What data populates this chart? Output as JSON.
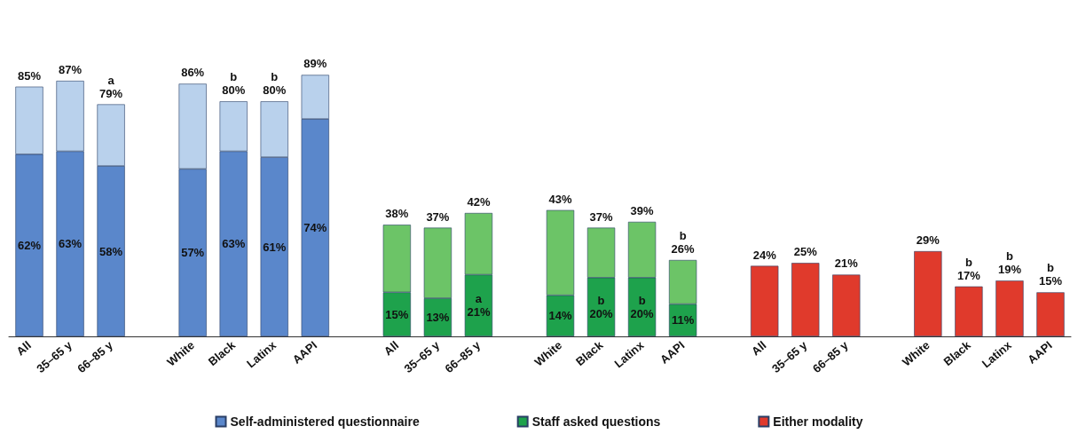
{
  "chart_data": {
    "type": "bar",
    "stacked": true,
    "legend": "bottom",
    "categories": [
      "All",
      "35–65 y",
      "66–85 y",
      null,
      "White",
      "Black",
      "Latinx",
      "AAPI",
      null,
      "All",
      "35–65 y",
      "66–85 y",
      null,
      "White",
      "Black",
      "Latinx",
      "AAPI",
      null,
      "All",
      "35–65 y",
      "66–85 y",
      null,
      "White",
      "Black",
      "Latinx",
      "AAPI"
    ],
    "series": [
      {
        "name": "Self-administered questionnaire",
        "color": "#5a87cb",
        "values": [
          62,
          63,
          58,
          null,
          57,
          63,
          61,
          74,
          null,
          null,
          null,
          null,
          null,
          null,
          null,
          null,
          null,
          null,
          null,
          null,
          null,
          null,
          null,
          null,
          null,
          null
        ],
        "value_labels": [
          "62%",
          "63%",
          "58%",
          null,
          "57%",
          "63%",
          "61%",
          "74%",
          null,
          null,
          null,
          null,
          null,
          null,
          null,
          null,
          null,
          null,
          null,
          null,
          null,
          null,
          null,
          null,
          null,
          null
        ]
      },
      {
        "color": "#b9d1ec",
        "values": [
          23,
          24,
          21,
          null,
          29,
          17,
          19,
          15,
          null,
          null,
          null,
          null,
          null,
          null,
          null,
          null,
          null,
          null,
          null,
          null,
          null,
          null,
          null,
          null,
          null,
          null
        ]
      },
      {
        "name": "Staff asked questions",
        "color": "#1ea24c",
        "values": [
          null,
          null,
          null,
          null,
          null,
          null,
          null,
          null,
          null,
          15,
          13,
          21,
          null,
          14,
          20,
          20,
          11,
          null,
          null,
          null,
          null,
          null,
          null,
          null,
          null,
          null
        ],
        "value_labels": [
          null,
          null,
          null,
          null,
          null,
          null,
          null,
          null,
          null,
          "15%",
          "13%",
          "a\n21%",
          null,
          "14%",
          "b\n20%",
          "b\n20%",
          "11%",
          null,
          null,
          null,
          null,
          null,
          null,
          null,
          null,
          null
        ]
      },
      {
        "color": "#6cc467",
        "values": [
          null,
          null,
          null,
          null,
          null,
          null,
          null,
          null,
          null,
          23,
          24,
          21,
          null,
          29,
          17,
          19,
          15,
          null,
          null,
          null,
          null,
          null,
          null,
          null,
          null,
          null
        ]
      },
      {
        "name": "Either modality",
        "color": "#e03a2c",
        "values": [
          null,
          null,
          null,
          null,
          null,
          null,
          null,
          null,
          null,
          null,
          null,
          null,
          null,
          null,
          null,
          null,
          null,
          null,
          24,
          25,
          21,
          null,
          29,
          17,
          19,
          15
        ],
        "value_labels": [
          null,
          null,
          null,
          null,
          null,
          null,
          null,
          null,
          null,
          null,
          null,
          null,
          null,
          null,
          null,
          null,
          null,
          null,
          "24%",
          "25%",
          "21%",
          null,
          "29%",
          "b\n17%",
          "b\n19%",
          "b\n15%"
        ]
      }
    ],
    "totals": [
      "85%",
      "87%",
      "a\n79%",
      null,
      "86%",
      "b\n80%",
      "b\n80%",
      "89%",
      null,
      "38%",
      "37%",
      "42%",
      null,
      "43%",
      "37%",
      "39%",
      "b\n26%",
      null,
      null,
      null,
      null,
      null,
      null,
      null,
      null,
      null
    ]
  }
}
